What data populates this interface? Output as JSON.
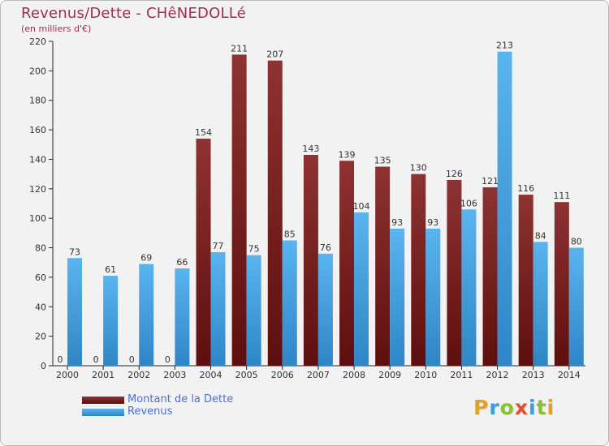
{
  "chart_data": {
    "type": "bar",
    "title": "Revenus/Dette - CHêNEDOLLé",
    "subtitle": "(en milliers d'€)",
    "categories": [
      "2000",
      "2001",
      "2002",
      "2003",
      "2004",
      "2005",
      "2006",
      "2007",
      "2008",
      "2009",
      "2010",
      "2011",
      "2012",
      "2013",
      "2014"
    ],
    "series": [
      {
        "name": "Montant de la Dette",
        "color": "#7a1f1f",
        "values": [
          0,
          0,
          0,
          0,
          154,
          211,
          207,
          143,
          139,
          135,
          130,
          126,
          121,
          116,
          111
        ]
      },
      {
        "name": "Revenus",
        "color": "#3f9fe0",
        "values": [
          73,
          61,
          69,
          66,
          77,
          75,
          85,
          76,
          104,
          93,
          93,
          106,
          213,
          84,
          80
        ]
      }
    ],
    "ylim": [
      0,
      220
    ],
    "yticks": [
      0,
      20,
      40,
      60,
      80,
      100,
      120,
      140,
      160,
      180,
      200,
      220
    ],
    "xlabel": "",
    "ylabel": "",
    "grid": false,
    "legend": "bottom-left"
  },
  "legend": {
    "items": [
      {
        "label": "Montant de la Dette",
        "color": "#7a1f1f"
      },
      {
        "label": "Revenus",
        "color": "#3f9fe0"
      }
    ]
  },
  "branding": {
    "letters": [
      "P",
      "r",
      "o",
      "x",
      "i",
      "t",
      "i"
    ]
  }
}
